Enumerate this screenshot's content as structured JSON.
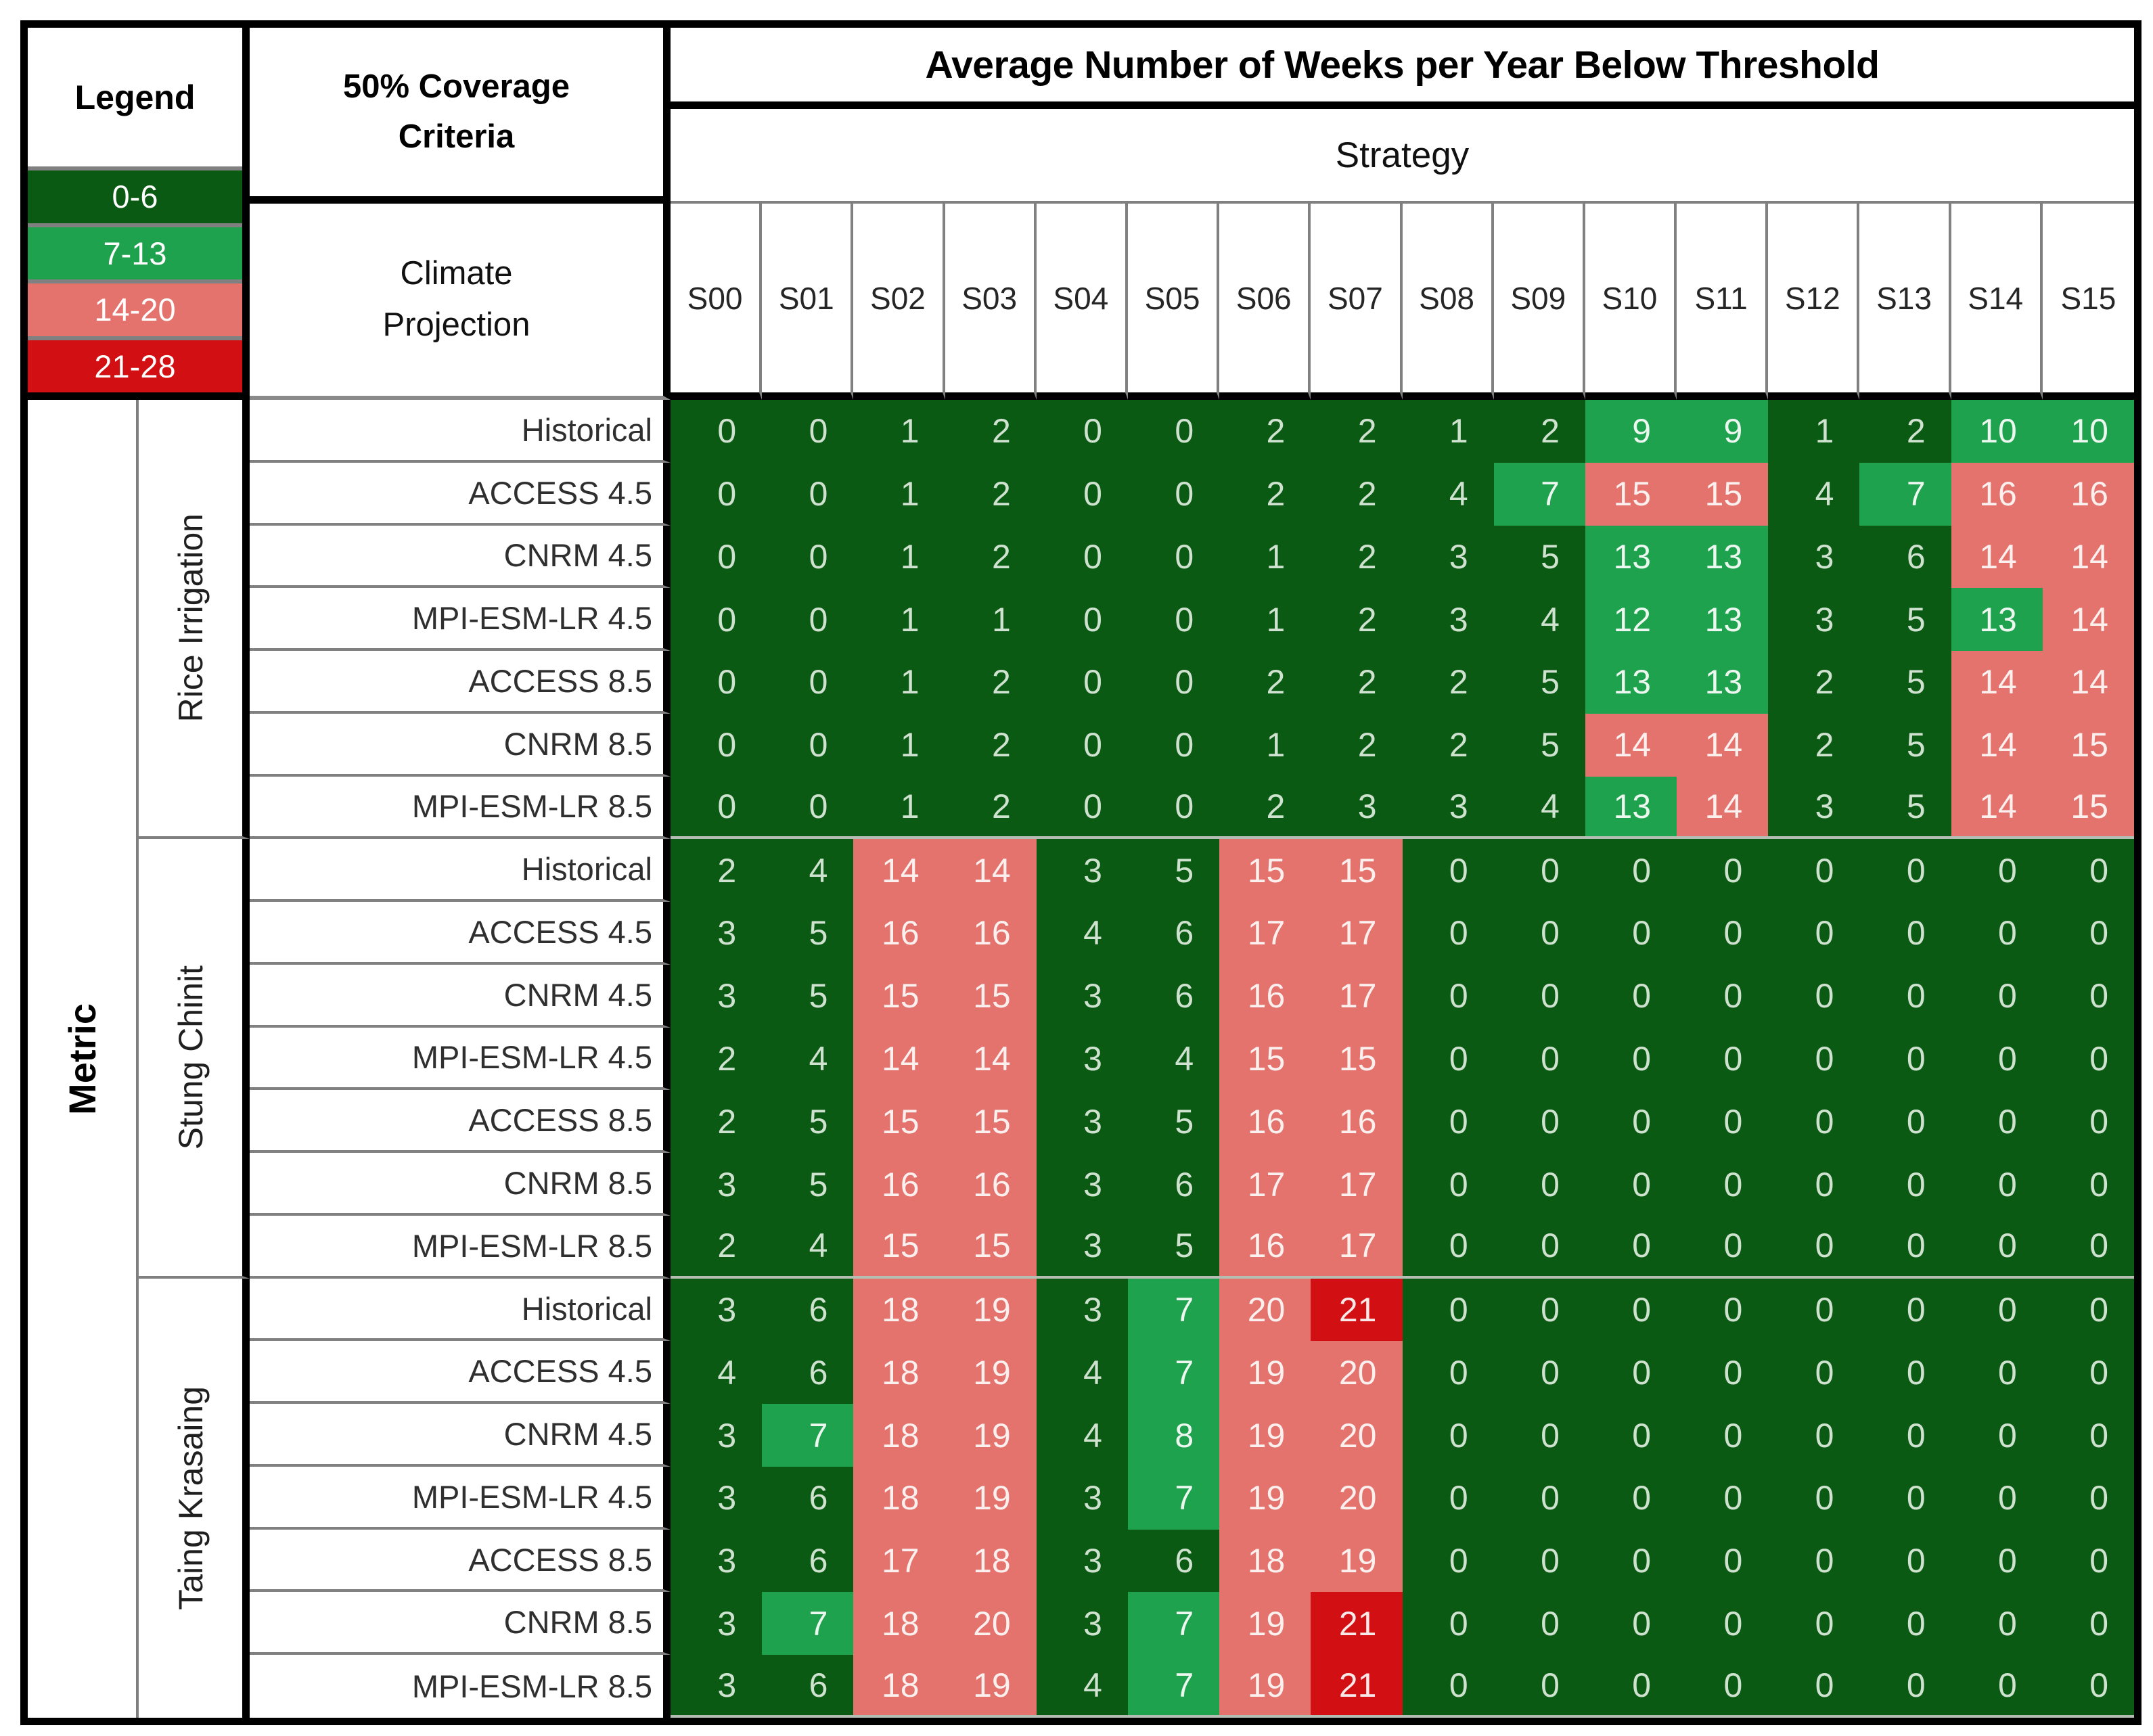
{
  "legend": {
    "title": "Legend"
  },
  "criteria_panel": {
    "coverage_lines": [
      "50% Coverage",
      "Criteria"
    ],
    "projection_lines": [
      "Climate",
      "Projection"
    ]
  },
  "chart_data": {
    "type": "heatmap",
    "title": "Average Number of Weeks per Year Below Threshold",
    "column_group_label": "Strategy",
    "row_group_label": "Metric",
    "columns": [
      "S00",
      "S01",
      "S02",
      "S03",
      "S04",
      "S05",
      "S06",
      "S07",
      "S08",
      "S09",
      "S10",
      "S11",
      "S12",
      "S13",
      "S14",
      "S15"
    ],
    "legend_bins": [
      {
        "label": "0-6",
        "min": 0,
        "max": 6,
        "color": "#0b5a13",
        "text_color": "#cfe2cf"
      },
      {
        "label": "7-13",
        "min": 7,
        "max": 13,
        "color": "#1ea24e",
        "text_color": "#ecf7ef"
      },
      {
        "label": "14-20",
        "min": 14,
        "max": 20,
        "color": "#e4736e",
        "text_color": "#fcf0ef"
      },
      {
        "label": "21-28",
        "min": 21,
        "max": 28,
        "color": "#d20f13",
        "text_color": "#f9e8e8"
      }
    ],
    "groups": [
      {
        "metric": "Rice Irrigation",
        "rows": [
          {
            "projection": "Historical",
            "values": [
              0,
              0,
              1,
              2,
              0,
              0,
              2,
              2,
              1,
              2,
              9,
              9,
              1,
              2,
              10,
              10
            ]
          },
          {
            "projection": "ACCESS 4.5",
            "values": [
              0,
              0,
              1,
              2,
              0,
              0,
              2,
              2,
              4,
              7,
              15,
              15,
              4,
              7,
              16,
              16
            ]
          },
          {
            "projection": "CNRM 4.5",
            "values": [
              0,
              0,
              1,
              2,
              0,
              0,
              1,
              2,
              3,
              5,
              13,
              13,
              3,
              6,
              14,
              14
            ]
          },
          {
            "projection": "MPI-ESM-LR 4.5",
            "values": [
              0,
              0,
              1,
              1,
              0,
              0,
              1,
              2,
              3,
              4,
              12,
              13,
              3,
              5,
              13,
              14
            ]
          },
          {
            "projection": "ACCESS 8.5",
            "values": [
              0,
              0,
              1,
              2,
              0,
              0,
              2,
              2,
              2,
              5,
              13,
              13,
              2,
              5,
              14,
              14
            ]
          },
          {
            "projection": "CNRM 8.5",
            "values": [
              0,
              0,
              1,
              2,
              0,
              0,
              1,
              2,
              2,
              5,
              14,
              14,
              2,
              5,
              14,
              15
            ]
          },
          {
            "projection": "MPI-ESM-LR 8.5",
            "values": [
              0,
              0,
              1,
              2,
              0,
              0,
              2,
              3,
              3,
              4,
              13,
              14,
              3,
              5,
              14,
              15
            ]
          }
        ]
      },
      {
        "metric": "Stung Chinit",
        "rows": [
          {
            "projection": "Historical",
            "values": [
              2,
              4,
              14,
              14,
              3,
              5,
              15,
              15,
              0,
              0,
              0,
              0,
              0,
              0,
              0,
              0
            ]
          },
          {
            "projection": "ACCESS 4.5",
            "values": [
              3,
              5,
              16,
              16,
              4,
              6,
              17,
              17,
              0,
              0,
              0,
              0,
              0,
              0,
              0,
              0
            ]
          },
          {
            "projection": "CNRM 4.5",
            "values": [
              3,
              5,
              15,
              15,
              3,
              6,
              16,
              17,
              0,
              0,
              0,
              0,
              0,
              0,
              0,
              0
            ]
          },
          {
            "projection": "MPI-ESM-LR 4.5",
            "values": [
              2,
              4,
              14,
              14,
              3,
              4,
              15,
              15,
              0,
              0,
              0,
              0,
              0,
              0,
              0,
              0
            ]
          },
          {
            "projection": "ACCESS 8.5",
            "values": [
              2,
              5,
              15,
              15,
              3,
              5,
              16,
              16,
              0,
              0,
              0,
              0,
              0,
              0,
              0,
              0
            ]
          },
          {
            "projection": "CNRM 8.5",
            "values": [
              3,
              5,
              16,
              16,
              3,
              6,
              17,
              17,
              0,
              0,
              0,
              0,
              0,
              0,
              0,
              0
            ]
          },
          {
            "projection": "MPI-ESM-LR 8.5",
            "values": [
              2,
              4,
              15,
              15,
              3,
              5,
              16,
              17,
              0,
              0,
              0,
              0,
              0,
              0,
              0,
              0
            ]
          }
        ]
      },
      {
        "metric": "Taing Krasaing",
        "rows": [
          {
            "projection": "Historical",
            "values": [
              3,
              6,
              18,
              19,
              3,
              7,
              20,
              21,
              0,
              0,
              0,
              0,
              0,
              0,
              0,
              0
            ]
          },
          {
            "projection": "ACCESS 4.5",
            "values": [
              4,
              6,
              18,
              19,
              4,
              7,
              19,
              20,
              0,
              0,
              0,
              0,
              0,
              0,
              0,
              0
            ]
          },
          {
            "projection": "CNRM 4.5",
            "values": [
              3,
              7,
              18,
              19,
              4,
              8,
              19,
              20,
              0,
              0,
              0,
              0,
              0,
              0,
              0,
              0
            ]
          },
          {
            "projection": "MPI-ESM-LR 4.5",
            "values": [
              3,
              6,
              18,
              19,
              3,
              7,
              19,
              20,
              0,
              0,
              0,
              0,
              0,
              0,
              0,
              0
            ]
          },
          {
            "projection": "ACCESS 8.5",
            "values": [
              3,
              6,
              17,
              18,
              3,
              6,
              18,
              19,
              0,
              0,
              0,
              0,
              0,
              0,
              0,
              0
            ]
          },
          {
            "projection": "CNRM 8.5",
            "values": [
              3,
              7,
              18,
              20,
              3,
              7,
              19,
              21,
              0,
              0,
              0,
              0,
              0,
              0,
              0,
              0
            ]
          },
          {
            "projection": "MPI-ESM-LR 8.5",
            "values": [
              3,
              6,
              18,
              19,
              4,
              7,
              19,
              21,
              0,
              0,
              0,
              0,
              0,
              0,
              0,
              0
            ]
          }
        ]
      }
    ]
  }
}
